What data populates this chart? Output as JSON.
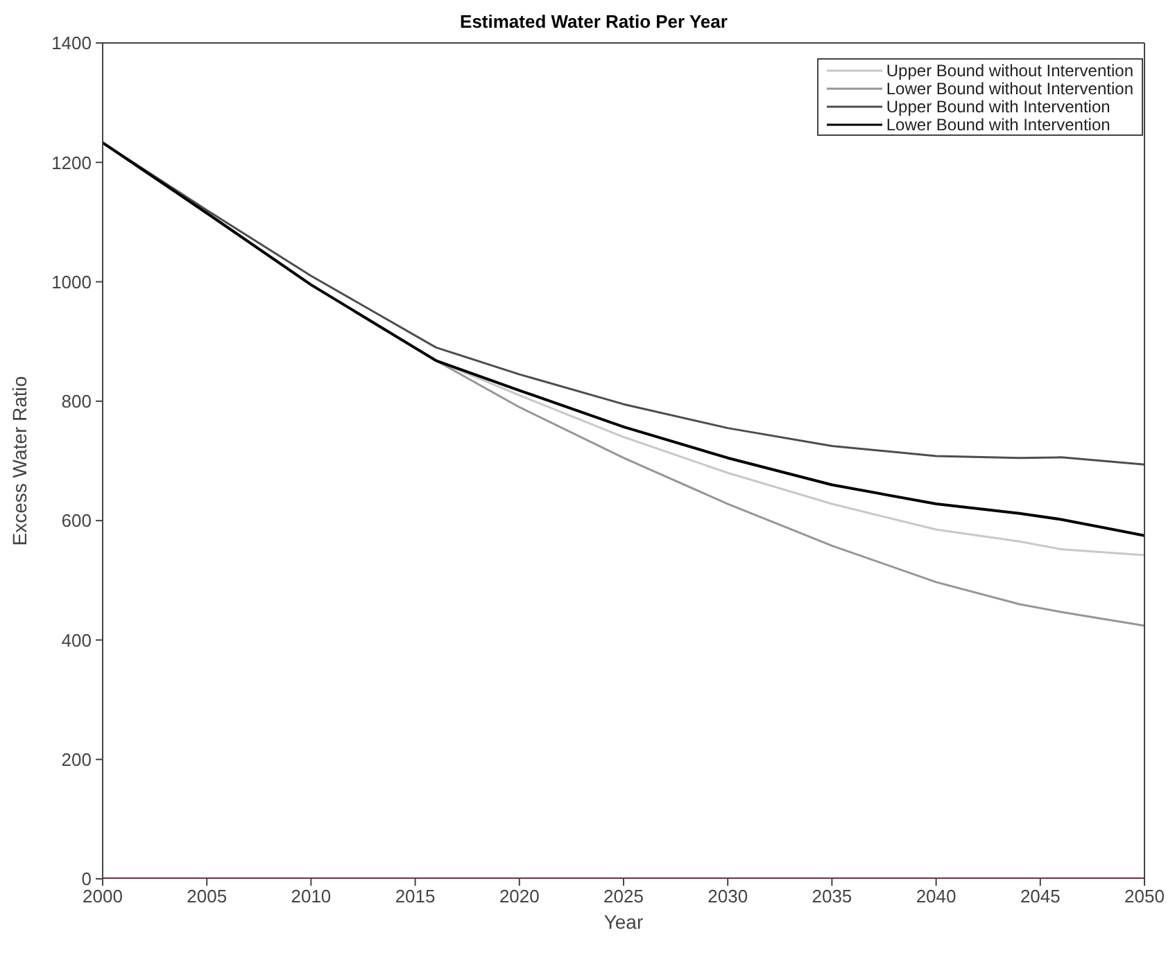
{
  "chart_data": {
    "type": "line",
    "title": "Estimated Water Ratio Per Year",
    "xlabel": "Year",
    "ylabel": "Excess Water Ratio",
    "x": [
      2000,
      2005,
      2010,
      2016,
      2020,
      2025,
      2030,
      2035,
      2040,
      2044,
      2046,
      2050
    ],
    "series": [
      {
        "name": "Upper Bound without Intervention",
        "color": "#c8c8c8",
        "values": [
          1233,
          1115,
          995,
          868,
          810,
          740,
          680,
          628,
          585,
          565,
          552,
          542
        ]
      },
      {
        "name": "Lower Bound without Intervention",
        "color": "#969696",
        "values": [
          1233,
          1115,
          995,
          868,
          790,
          705,
          628,
          558,
          497,
          460,
          447,
          424
        ]
      },
      {
        "name": "Upper Bound with Intervention",
        "color": "#4d4d4d",
        "values": [
          1233,
          1120,
          1010,
          890,
          845,
          795,
          755,
          725,
          708,
          705,
          706,
          694
        ]
      },
      {
        "name": "Lower Bound with Intervention",
        "color": "#000000",
        "values": [
          1233,
          1115,
          995,
          868,
          818,
          757,
          705,
          660,
          628,
          612,
          602,
          575
        ]
      },
      {
        "color": "#7a2a48",
        "values": [
          0,
          0,
          0,
          0,
          0,
          0,
          0,
          0,
          0,
          0,
          0,
          0
        ]
      }
    ],
    "xlim": [
      2000,
      2050
    ],
    "xticks": [
      2000,
      2005,
      2010,
      2015,
      2020,
      2025,
      2030,
      2035,
      2040,
      2045,
      2050
    ],
    "ylim": [
      0,
      1400
    ],
    "yticks": [
      0,
      200,
      400,
      600,
      800,
      1000,
      1200,
      1400
    ],
    "grid": false,
    "legend": "top right",
    "marker": "none",
    "line_style": "solid"
  }
}
